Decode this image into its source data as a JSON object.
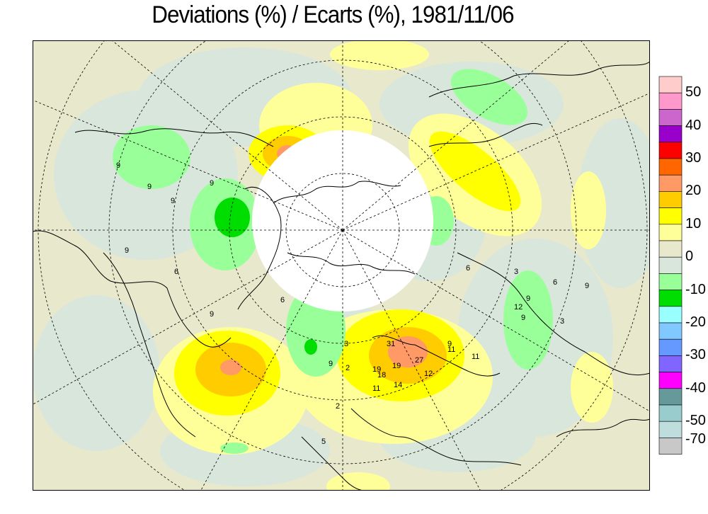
{
  "title": "Deviations (%) / Ecarts (%), 1981/11/06",
  "legend": {
    "swatches": [
      "#ffcccc",
      "#ff99cc",
      "#cc66cc",
      "#9900cc",
      "#ff0000",
      "#ff6600",
      "#ff9966",
      "#ffcc00",
      "#ffff00",
      "#ffff99",
      "#e8e8cc",
      "#d9e6dc",
      "#99ff99",
      "#00dd00",
      "#99ffff",
      "#80c8ff",
      "#6699ff",
      "#8066ff",
      "#ff00ff",
      "#669999",
      "#99cccc",
      "#c0dddd",
      "#c8c8c8"
    ],
    "labels": [
      "50",
      "40",
      "30",
      "20",
      "10",
      "0",
      "-10",
      "-20",
      "-30",
      "-40",
      "-50",
      "-70"
    ]
  },
  "map_labels": [
    "9",
    "9",
    "9",
    "9",
    "12",
    "9",
    "9",
    "3",
    "6",
    "6",
    "11",
    "11",
    "12",
    "9",
    "27",
    "31",
    "19",
    "18",
    "19",
    "14",
    "11",
    "3",
    "9",
    "2",
    "5",
    "2",
    "9",
    "6",
    "9",
    "6",
    "9",
    "3"
  ]
}
